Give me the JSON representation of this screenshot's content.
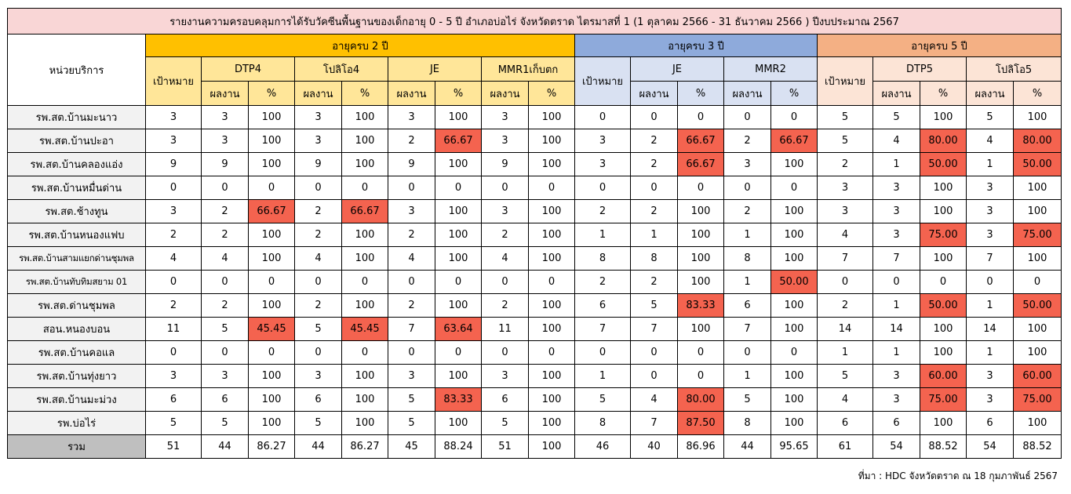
{
  "title": "รายงานความครอบคลุมการได้รับวัคซีนพื้นฐานของเด็กอายุ 0 - 5 ปี อำเภอบ่อไร่ จังหวัดตราด ไตรมาสที่ 1 (1 ตุลาคม 2566 - 31 ธันวาคม 2566 ) ปีงบประมาณ 2567",
  "headers": {
    "unit": "หน่วยบริการ",
    "groups": [
      "อายุครบ 2 ปี",
      "อายุครบ 3 ปี",
      "อายุครบ 5 ปี"
    ],
    "target": "เป้าหมาย",
    "vaccines": [
      "DTP4",
      "โปลิโอ4",
      "JE",
      "MMR1เก็บตก",
      "JE",
      "MMR2",
      "DTP5",
      "โปลิโอ5"
    ],
    "result": "ผลงาน",
    "percent": "%"
  },
  "rows": [
    {
      "unit": "รพ.สต.บ้านมะนาว",
      "v": [
        "3",
        "3",
        "100",
        "3",
        "100",
        "3",
        "100",
        "3",
        "100",
        "0",
        "0",
        "0",
        "0",
        "0",
        "5",
        "5",
        "100",
        "5",
        "100"
      ]
    },
    {
      "unit": "รพ.สต.บ้านปะอา",
      "v": [
        "3",
        "3",
        "100",
        "3",
        "100",
        "2",
        "66.67",
        "3",
        "100",
        "3",
        "2",
        "66.67",
        "2",
        "66.67",
        "5",
        "4",
        "80.00",
        "4",
        "80.00"
      ]
    },
    {
      "unit": "รพ.สต.บ้านคลองแอ่ง",
      "v": [
        "9",
        "9",
        "100",
        "9",
        "100",
        "9",
        "100",
        "9",
        "100",
        "3",
        "2",
        "66.67",
        "3",
        "100",
        "2",
        "1",
        "50.00",
        "1",
        "50.00"
      ]
    },
    {
      "unit": "รพ.สต.บ้านหมื่นด่าน",
      "v": [
        "0",
        "0",
        "0",
        "0",
        "0",
        "0",
        "0",
        "0",
        "0",
        "0",
        "0",
        "0",
        "0",
        "0",
        "3",
        "3",
        "100",
        "3",
        "100"
      ]
    },
    {
      "unit": "รพ.สต.ช้างทูน",
      "v": [
        "3",
        "2",
        "66.67",
        "2",
        "66.67",
        "3",
        "100",
        "3",
        "100",
        "2",
        "2",
        "100",
        "2",
        "100",
        "3",
        "3",
        "100",
        "3",
        "100"
      ]
    },
    {
      "unit": "รพ.สต.บ้านหนองแฟบ",
      "v": [
        "2",
        "2",
        "100",
        "2",
        "100",
        "2",
        "100",
        "2",
        "100",
        "1",
        "1",
        "100",
        "1",
        "100",
        "4",
        "3",
        "75.00",
        "3",
        "75.00"
      ]
    },
    {
      "unit": "รพ.สต.บ้านสามแยกด่านชุมพล",
      "v": [
        "4",
        "4",
        "100",
        "4",
        "100",
        "4",
        "100",
        "4",
        "100",
        "8",
        "8",
        "100",
        "8",
        "100",
        "7",
        "7",
        "100",
        "7",
        "100"
      ]
    },
    {
      "unit": "รพ.สต.บ้านทับทิมสยาม 01",
      "v": [
        "0",
        "0",
        "0",
        "0",
        "0",
        "0",
        "0",
        "0",
        "0",
        "2",
        "2",
        "100",
        "1",
        "50.00",
        "0",
        "0",
        "0",
        "0",
        "0"
      ]
    },
    {
      "unit": "รพ.สต.ด่านชุมพล",
      "v": [
        "2",
        "2",
        "100",
        "2",
        "100",
        "2",
        "100",
        "2",
        "100",
        "6",
        "5",
        "83.33",
        "6",
        "100",
        "2",
        "1",
        "50.00",
        "1",
        "50.00"
      ]
    },
    {
      "unit": "สอน.หนองบอน",
      "v": [
        "11",
        "5",
        "45.45",
        "5",
        "45.45",
        "7",
        "63.64",
        "11",
        "100",
        "7",
        "7",
        "100",
        "7",
        "100",
        "14",
        "14",
        "100",
        "14",
        "100"
      ]
    },
    {
      "unit": "รพ.สต.บ้านคอแล",
      "v": [
        "0",
        "0",
        "0",
        "0",
        "0",
        "0",
        "0",
        "0",
        "0",
        "0",
        "0",
        "0",
        "0",
        "0",
        "1",
        "1",
        "100",
        "1",
        "100"
      ]
    },
    {
      "unit": "รพ.สต.บ้านทุ่งยาว",
      "v": [
        "3",
        "3",
        "100",
        "3",
        "100",
        "3",
        "100",
        "3",
        "100",
        "1",
        "0",
        "0",
        "1",
        "100",
        "5",
        "3",
        "60.00",
        "3",
        "60.00"
      ]
    },
    {
      "unit": "รพ.สต.บ้านมะม่วง",
      "v": [
        "6",
        "6",
        "100",
        "6",
        "100",
        "5",
        "83.33",
        "6",
        "100",
        "5",
        "4",
        "80.00",
        "5",
        "100",
        "4",
        "3",
        "75.00",
        "3",
        "75.00"
      ]
    },
    {
      "unit": "รพ.บ่อไร่",
      "v": [
        "5",
        "5",
        "100",
        "5",
        "100",
        "5",
        "100",
        "5",
        "100",
        "8",
        "7",
        "87.50",
        "8",
        "100",
        "6",
        "6",
        "100",
        "6",
        "100"
      ]
    }
  ],
  "total": {
    "unit": "รวม",
    "v": [
      "51",
      "44",
      "86.27",
      "44",
      "86.27",
      "45",
      "88.24",
      "51",
      "100",
      "46",
      "40",
      "86.96",
      "44",
      "95.65",
      "61",
      "54",
      "88.52",
      "54",
      "88.52"
    ]
  },
  "highlight_color": "#f4634f",
  "source": "ที่มา : HDC จังหวัดตราด ณ 18 กุมภาพันธ์ 2567"
}
